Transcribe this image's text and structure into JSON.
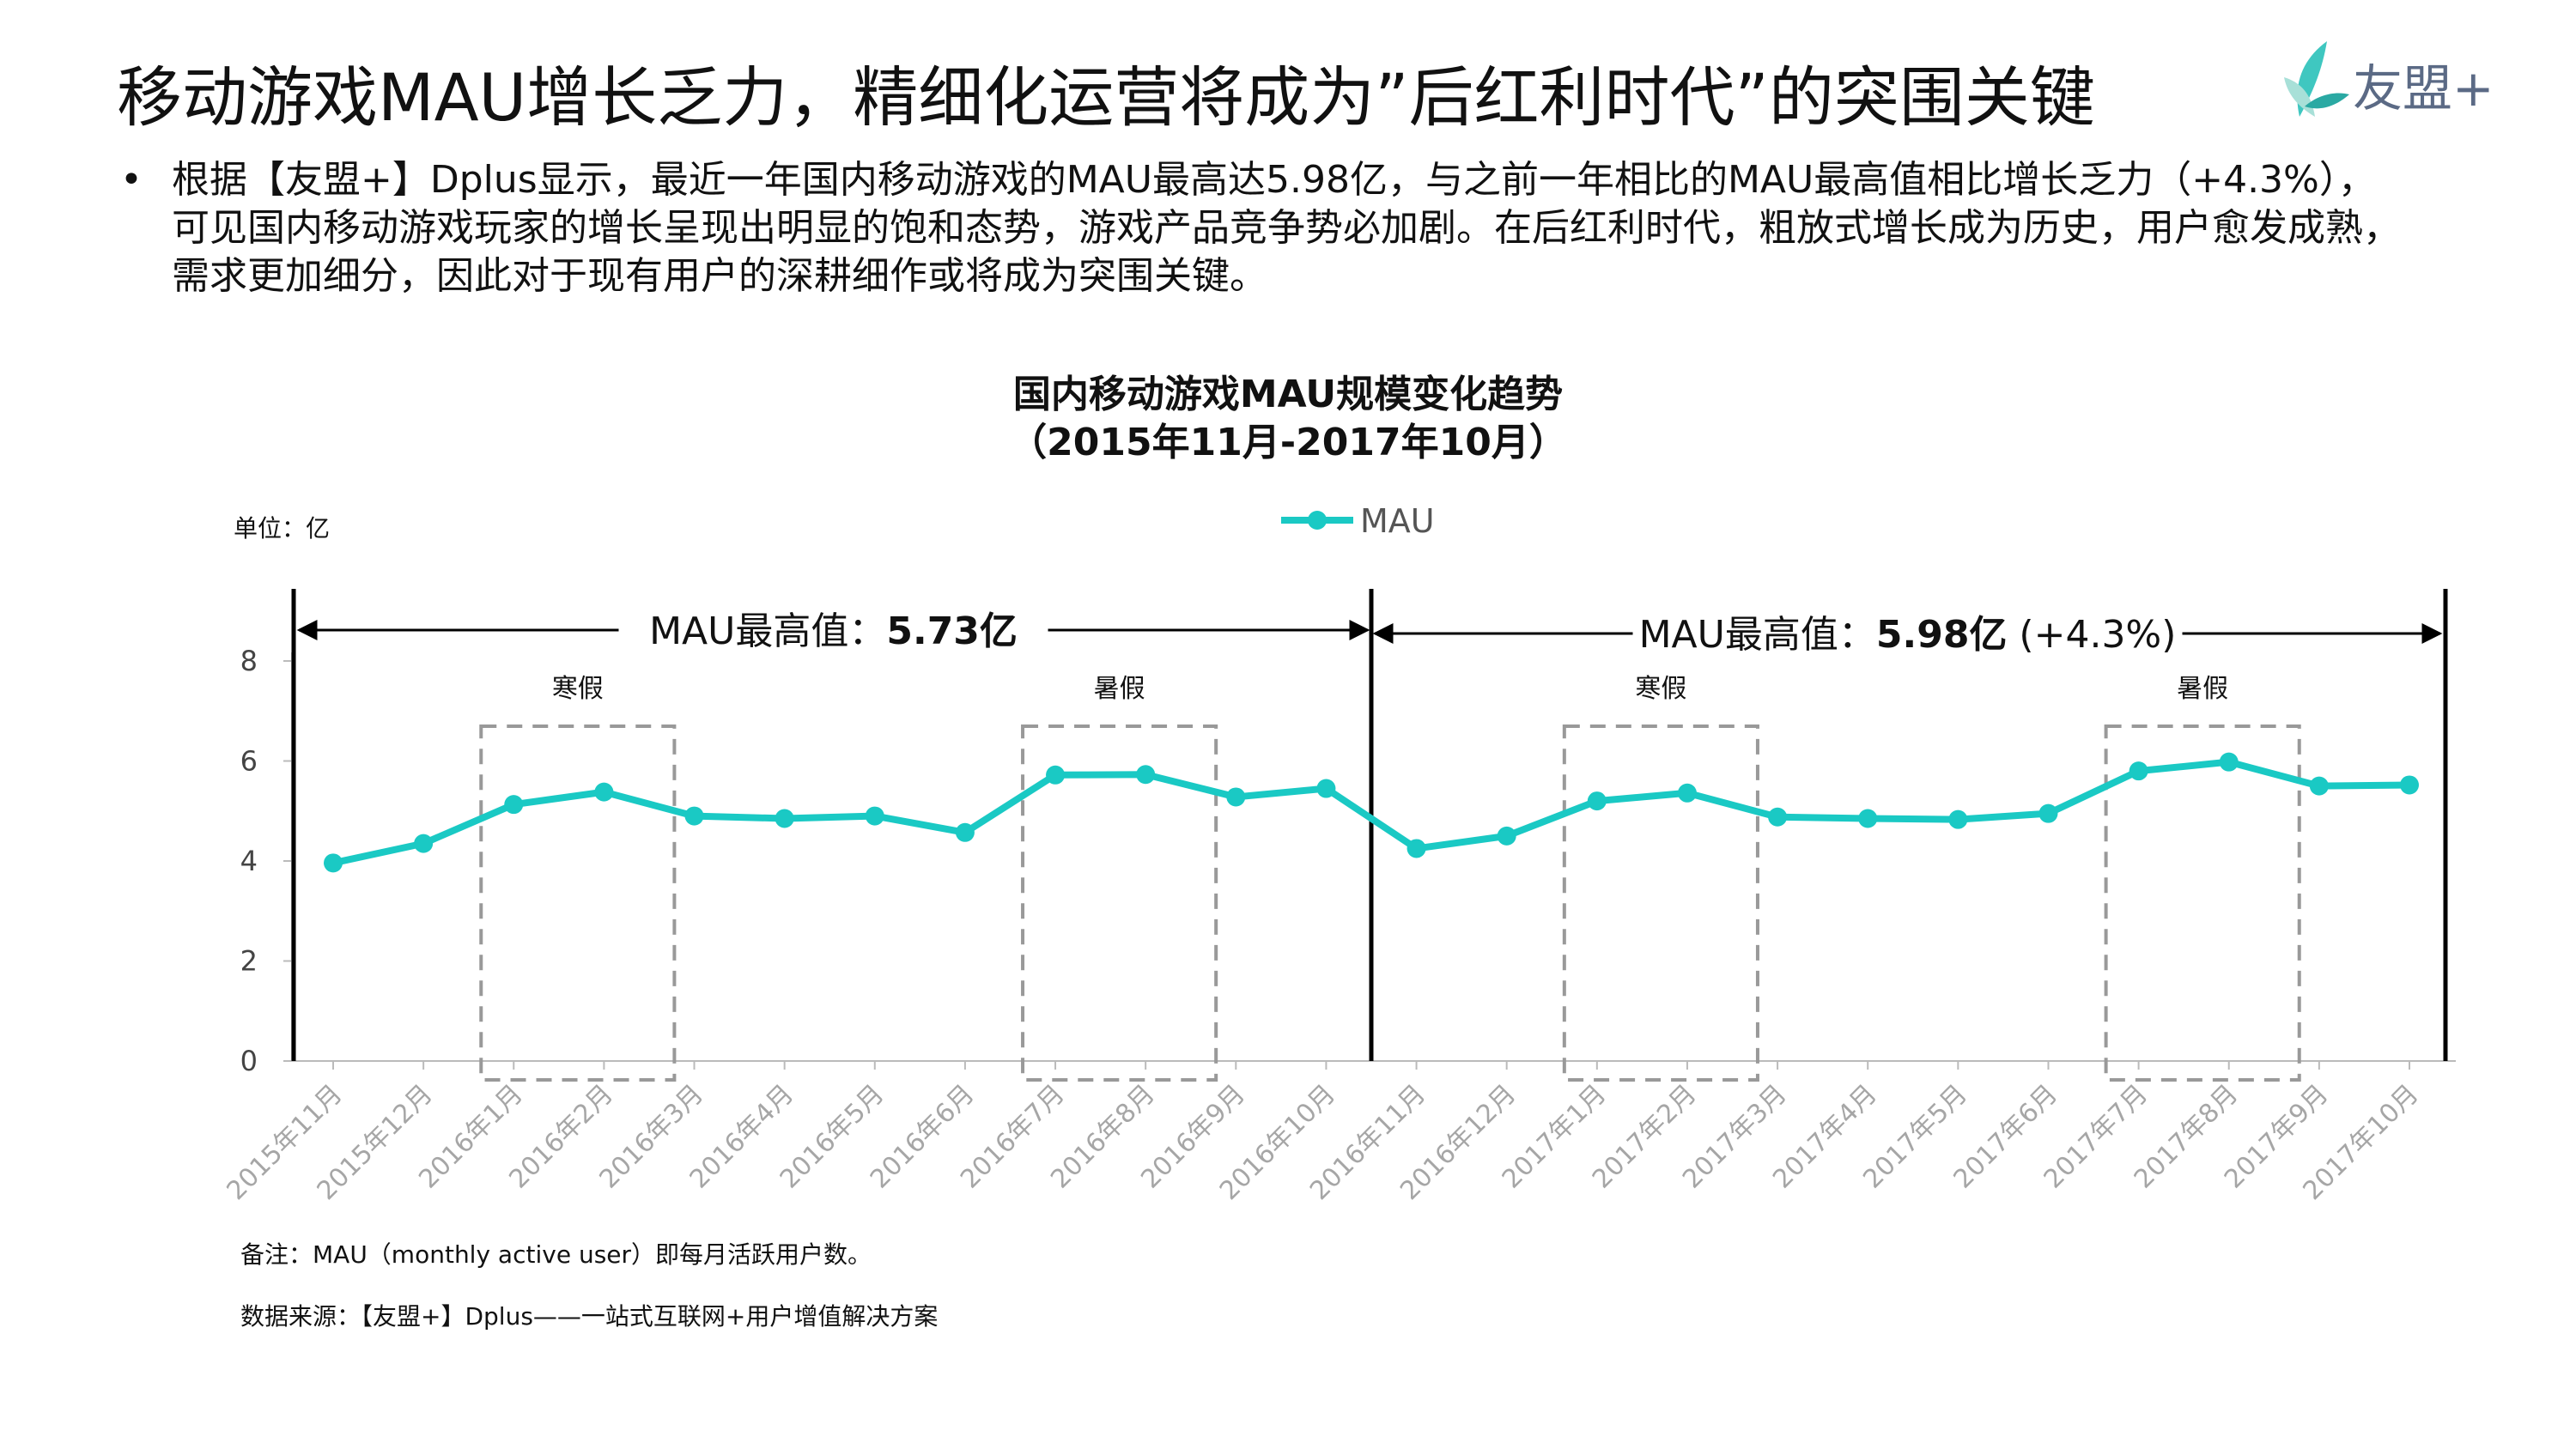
{
  "header": {
    "title": "移动游戏MAU增长乏力，精细化运营将成为”后红利时代”的突围关键",
    "logo_text": "友盟+"
  },
  "bullet": {
    "marker": "•",
    "lines": [
      "根据【友盟+】Dplus显示，最近一年国内移动游戏的MAU最高达5.98亿，与之前一年相比的MAU最高值相比增长乏力（+4.3%），",
      "可见国内移动游戏玩家的增长呈现出明显的饱和态势，游戏产品竞争势必加剧。在后红利时代，粗放式增长成为历史，用户愈发成熟，",
      "需求更加细分，因此对于现有用户的深耕细作或将成为突围关键。"
    ]
  },
  "footer": {
    "note": "备注：MAU（monthly active user）即每月活跃用户数。",
    "source": "数据来源：【友盟+】Dplus——一站式互联网+用户增值解决方案"
  },
  "chart_data": {
    "type": "line",
    "title_lines": [
      "国内移动游戏MAU规模变化趋势",
      "（2015年11月-2017年10月）"
    ],
    "unit_label": "单位：亿",
    "categories": [
      "2015年11月",
      "2015年12月",
      "2016年1月",
      "2016年2月",
      "2016年3月",
      "2016年4月",
      "2016年5月",
      "2016年6月",
      "2016年7月",
      "2016年8月",
      "2016年9月",
      "2016年10月",
      "2016年11月",
      "2016年12月",
      "2017年1月",
      "2017年2月",
      "2017年3月",
      "2017年4月",
      "2017年5月",
      "2017年6月",
      "2017年7月",
      "2017年8月",
      "2017年9月",
      "2017年10月"
    ],
    "series": [
      {
        "name": "MAU",
        "values": [
          3.96,
          4.35,
          5.13,
          5.38,
          4.9,
          4.85,
          4.9,
          4.57,
          5.72,
          5.73,
          5.28,
          5.45,
          4.25,
          4.5,
          5.2,
          5.36,
          4.88,
          4.85,
          4.83,
          4.95,
          5.8,
          5.98,
          5.5,
          5.52
        ]
      }
    ],
    "ylim": [
      0,
      8
    ],
    "yticks": [
      0,
      2,
      4,
      6,
      8
    ],
    "grid": false,
    "legend_position": "top-center",
    "line_color": "#1ac9c4",
    "holiday_boxes": [
      {
        "label": "寒假",
        "from": "2016年1月",
        "to": "2016年2月"
      },
      {
        "label": "暑假",
        "from": "2016年7月",
        "to": "2016年8月"
      },
      {
        "label": "寒假",
        "from": "2017年1月",
        "to": "2017年2月"
      },
      {
        "label": "暑假",
        "from": "2017年7月",
        "to": "2017年8月"
      }
    ],
    "period_annotations": [
      {
        "label_prefix": "MAU最高值：",
        "label_value": "5.73亿",
        "label_suffix": ""
      },
      {
        "label_prefix": "MAU最高值：",
        "label_value": "5.98亿",
        "label_suffix": " (+4.3%)"
      }
    ]
  }
}
